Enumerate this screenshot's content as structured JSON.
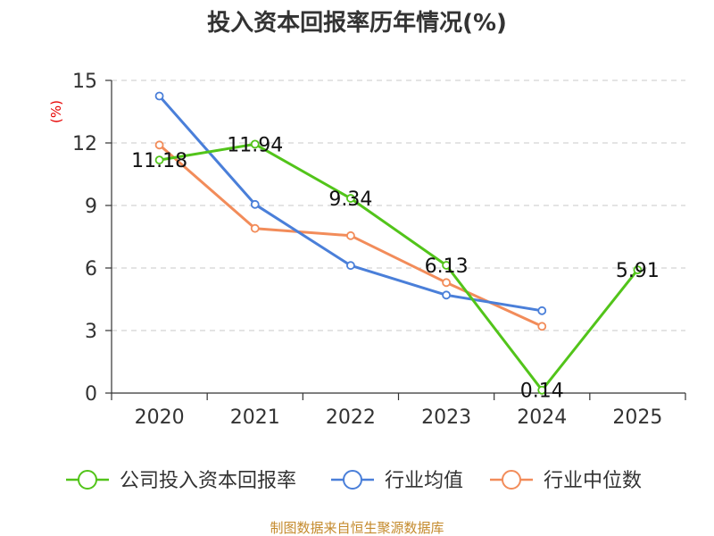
{
  "chart_data": {
    "type": "line",
    "title": "投入资本回报率历年情况(%)",
    "ylabel": "(%)",
    "xlabel": "",
    "categories": [
      "2020",
      "2021",
      "2022",
      "2023",
      "2024",
      "2025"
    ],
    "ylim": [
      0,
      15
    ],
    "yticks": [
      0,
      3,
      6,
      9,
      12,
      15
    ],
    "grid": true,
    "legend_position": "bottom",
    "series": [
      {
        "name": "公司投入资本回报率",
        "color": "#52c41a",
        "values": [
          11.18,
          11.94,
          9.34,
          6.13,
          0.14,
          5.91
        ],
        "labels": [
          "11.18",
          "11.94",
          "9.34",
          "6.13",
          "0.14",
          "5.91"
        ]
      },
      {
        "name": "行业均值",
        "color": "#4a7fd9",
        "values": [
          14.25,
          9.05,
          6.12,
          4.7,
          3.95,
          null
        ]
      },
      {
        "name": "行业中位数",
        "color": "#f28c5a",
        "values": [
          11.9,
          7.9,
          7.55,
          5.3,
          3.2,
          null
        ]
      }
    ]
  },
  "source": "制图数据来自恒生聚源数据库"
}
